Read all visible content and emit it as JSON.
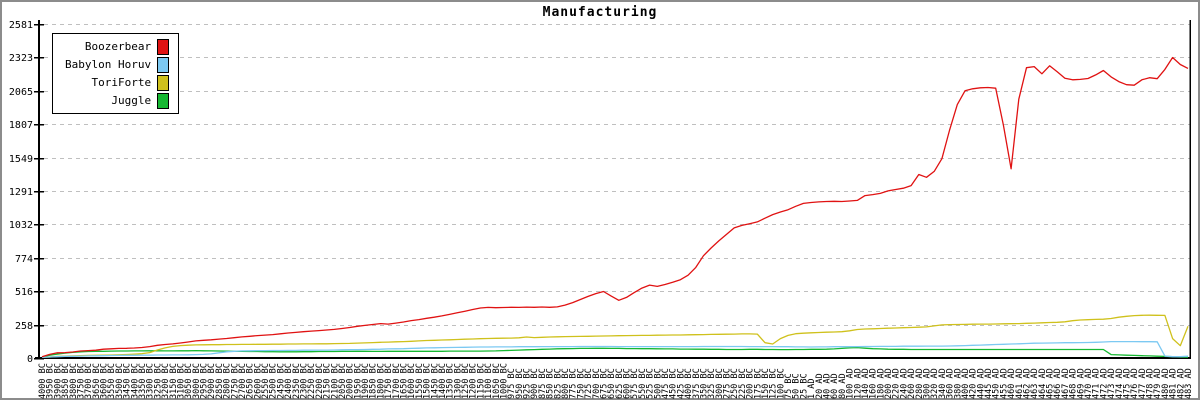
{
  "window": {
    "title": "Manufacturing"
  },
  "chart_data": {
    "type": "line",
    "title": "Manufacturing",
    "grid": "horizontal-dashed",
    "legend_position": "top-left",
    "ylim": [
      0,
      2581
    ],
    "y_ticks": [
      0,
      258,
      516,
      774,
      1032,
      1291,
      1549,
      1807,
      2065,
      2323,
      2581
    ],
    "colors": {
      "axis": "#000000",
      "grid": "#bfbfbf",
      "background": "#ffffff",
      "frame": "#8c8c8c"
    },
    "x_labels": [
      "4000 BC",
      "3950 BC",
      "3900 BC",
      "3850 BC",
      "3800 BC",
      "3750 BC",
      "3700 BC",
      "3650 BC",
      "3600 BC",
      "3550 BC",
      "3500 BC",
      "3450 BC",
      "3400 BC",
      "3350 BC",
      "3300 BC",
      "3250 BC",
      "3200 BC",
      "3150 BC",
      "3100 BC",
      "3050 BC",
      "3000 BC",
      "2950 BC",
      "2900 BC",
      "2850 BC",
      "2800 BC",
      "2750 BC",
      "2700 BC",
      "2650 BC",
      "2600 BC",
      "2550 BC",
      "2500 BC",
      "2450 BC",
      "2400 BC",
      "2350 BC",
      "2300 BC",
      "2250 BC",
      "2200 BC",
      "2150 BC",
      "2100 BC",
      "2050 BC",
      "2000 BC",
      "1950 BC",
      "1900 BC",
      "1850 BC",
      "1800 BC",
      "1750 BC",
      "1700 BC",
      "1650 BC",
      "1600 BC",
      "1550 BC",
      "1500 BC",
      "1450 BC",
      "1400 BC",
      "1350 BC",
      "1300 BC",
      "1250 BC",
      "1200 BC",
      "1150 BC",
      "1100 BC",
      "1050 BC",
      "1000 BC",
      "975 BC",
      "950 BC",
      "925 BC",
      "900 BC",
      "875 BC",
      "850 BC",
      "825 BC",
      "800 BC",
      "775 BC",
      "750 BC",
      "725 BC",
      "700 BC",
      "675 BC",
      "650 BC",
      "625 BC",
      "600 BC",
      "575 BC",
      "550 BC",
      "525 BC",
      "500 BC",
      "475 BC",
      "450 BC",
      "425 BC",
      "400 BC",
      "375 BC",
      "350 BC",
      "325 BC",
      "300 BC",
      "275 BC",
      "250 BC",
      "225 BC",
      "200 BC",
      "175 BC",
      "150 BC",
      "125 BC",
      "100 BC",
      "75 BC",
      "50 BC",
      "25 BC",
      "1 AD",
      "20 AD",
      "40 AD",
      "60 AD",
      "80 AD",
      "100 AD",
      "120 AD",
      "140 AD",
      "160 AD",
      "180 AD",
      "200 AD",
      "220 AD",
      "240 AD",
      "260 AD",
      "280 AD",
      "300 AD",
      "320 AD",
      "340 AD",
      "360 AD",
      "380 AD",
      "400 AD",
      "420 AD",
      "440 AD",
      "445 AD",
      "450 AD",
      "455 AD",
      "460 AD",
      "461 AD",
      "462 AD",
      "463 AD",
      "464 AD",
      "465 AD",
      "466 AD",
      "467 AD",
      "468 AD",
      "469 AD",
      "470 AD",
      "471 AD",
      "472 AD",
      "473 AD",
      "474 AD",
      "475 AD",
      "476 AD",
      "477 AD",
      "478 AD",
      "479 AD",
      "480 AD",
      "481 AD",
      "482 AD",
      "483 AD"
    ],
    "series": [
      {
        "name": "Boozerbear",
        "color": "#e01212",
        "values": [
          10,
          28,
          40,
          42,
          46,
          54,
          57,
          60,
          68,
          71,
          74,
          75,
          77,
          81,
          88,
          98,
          104,
          109,
          116,
          124,
          132,
          137,
          141,
          146,
          151,
          157,
          163,
          168,
          173,
          177,
          181,
          187,
          193,
          198,
          203,
          208,
          212,
          216,
          221,
          228,
          236,
          245,
          252,
          259,
          266,
          262,
          270,
          278,
          289,
          297,
          307,
          315,
          325,
          337,
          349,
          362,
          375,
          386,
          391,
          389,
          390,
          392,
          391,
          393,
          392,
          394,
          392,
          395,
          409,
          428,
          452,
          476,
          498,
          514,
          478,
          446,
          468,
          505,
          540,
          563,
          553,
          568,
          585,
          605,
          640,
          700,
          790,
          850,
          905,
          955,
          1005,
          1025,
          1038,
          1052,
          1080,
          1108,
          1128,
          1146,
          1172,
          1195,
          1202,
          1206,
          1209,
          1211,
          1209,
          1213,
          1218,
          1255,
          1263,
          1272,
          1291,
          1302,
          1312,
          1332,
          1418,
          1396,
          1442,
          1540,
          1762,
          1958,
          2065,
          2080,
          2088,
          2090,
          2085,
          1800,
          1462,
          2000,
          2243,
          2252,
          2196,
          2258,
          2212,
          2162,
          2150,
          2153,
          2160,
          2188,
          2222,
          2172,
          2136,
          2112,
          2108,
          2150,
          2166,
          2158,
          2230,
          2322,
          2268,
          2238
        ]
      },
      {
        "name": "Babylon Horuv",
        "color": "#7cc9f2",
        "values": [
          5,
          8,
          10,
          12,
          13,
          15,
          16,
          17,
          18,
          19,
          20,
          21,
          21,
          22,
          22,
          23,
          23,
          24,
          24,
          25,
          26,
          28,
          32,
          40,
          48,
          52,
          55,
          56,
          57,
          57,
          58,
          58,
          59,
          59,
          60,
          60,
          61,
          61,
          62,
          63,
          64,
          65,
          66,
          67,
          68,
          70,
          71,
          72,
          74,
          76,
          78,
          79,
          80,
          81,
          82,
          83,
          84,
          85,
          85,
          86,
          86,
          86,
          87,
          87,
          87,
          88,
          88,
          88,
          88,
          88,
          89,
          89,
          89,
          89,
          89,
          88,
          88,
          88,
          88,
          88,
          88,
          88,
          88,
          88,
          88,
          88,
          89,
          89,
          89,
          89,
          89,
          89,
          88,
          88,
          88,
          88,
          87,
          87,
          86,
          86,
          85,
          86,
          86,
          87,
          87,
          88,
          88,
          89,
          89,
          90,
          90,
          90,
          91,
          91,
          91,
          92,
          92,
          92,
          93,
          94,
          96,
          98,
          100,
          102,
          104,
          106,
          108,
          110,
          112,
          114,
          115,
          116,
          117,
          118,
          118,
          119,
          120,
          121,
          124,
          127,
          127,
          127,
          127,
          126,
          126,
          125,
          15,
          10,
          10,
          14
        ]
      },
      {
        "name": "ToriForte",
        "color": "#cfc11c",
        "values": [
          5,
          8,
          12,
          14,
          16,
          18,
          20,
          21,
          22,
          23,
          25,
          27,
          30,
          34,
          42,
          62,
          78,
          90,
          96,
          99,
          101,
          102,
          103,
          103,
          104,
          104,
          105,
          105,
          106,
          106,
          107,
          107,
          108,
          108,
          109,
          109,
          110,
          110,
          111,
          112,
          113,
          115,
          117,
          119,
          121,
          123,
          125,
          127,
          129,
          132,
          135,
          137,
          139,
          141,
          143,
          145,
          147,
          149,
          151,
          152,
          153,
          154,
          156,
          162,
          158,
          160,
          162,
          164,
          165,
          166,
          167,
          168,
          169,
          170,
          171,
          172,
          173,
          174,
          175,
          175,
          176,
          177,
          178,
          178,
          179,
          180,
          181,
          182,
          183,
          184,
          185,
          186,
          186,
          185,
          118,
          108,
          150,
          175,
          188,
          192,
          195,
          197,
          199,
          201,
          203,
          210,
          220,
          224,
          226,
          228,
          230,
          232,
          234,
          236,
          238,
          240,
          248,
          256,
          258,
          259,
          260,
          261,
          262,
          262,
          263,
          264,
          265,
          266,
          268,
          270,
          272,
          274,
          276,
          280,
          288,
          294,
          296,
          298,
          300,
          305,
          315,
          322,
          328,
          330,
          331,
          330,
          329,
          150,
          95,
          245
        ]
      },
      {
        "name": "Juggle",
        "color": "#16b832",
        "values": [
          8,
          22,
          30,
          38,
          44,
          48,
          50,
          52,
          52,
          53,
          54,
          54,
          55,
          55,
          56,
          56,
          55,
          55,
          56,
          56,
          57,
          56,
          55,
          54,
          53,
          52,
          51,
          50,
          50,
          49,
          49,
          48,
          48,
          48,
          49,
          49,
          50,
          50,
          50,
          51,
          51,
          52,
          52,
          51,
          51,
          52,
          52,
          52,
          52,
          52,
          52,
          52,
          52,
          53,
          53,
          53,
          53,
          53,
          54,
          55,
          57,
          59,
          61,
          63,
          65,
          67,
          69,
          71,
          72,
          73,
          74,
          74,
          75,
          75,
          74,
          74,
          73,
          73,
          72,
          72,
          71,
          70,
          70,
          69,
          69,
          68,
          68,
          67,
          67,
          66,
          66,
          66,
          67,
          67,
          66,
          66,
          65,
          65,
          66,
          66,
          67,
          67,
          68,
          70,
          74,
          78,
          80,
          76,
          72,
          70,
          68,
          67,
          67,
          66,
          66,
          66,
          66,
          66,
          66,
          66,
          66,
          66,
          66,
          66,
          66,
          66,
          66,
          66,
          66,
          66,
          66,
          66,
          66,
          66,
          66,
          66,
          66,
          66,
          66,
          26,
          24,
          22,
          20,
          18,
          16,
          14,
          12,
          10,
          8,
          6
        ]
      }
    ]
  }
}
